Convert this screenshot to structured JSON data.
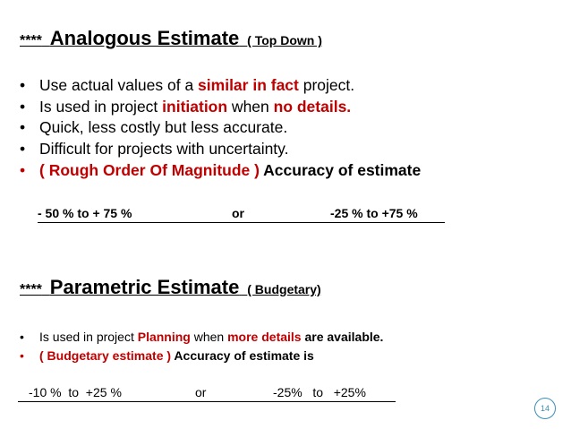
{
  "sections": [
    {
      "stars": "****",
      "title": "Analogous Estimate",
      "subtitle": "( Top Down )",
      "bullets": [
        [
          {
            "text": "Use actual values of a ",
            "color": "#000000",
            "bold": false
          },
          {
            "text": "similar in fact",
            "color": "#c00000",
            "bold": true
          },
          {
            "text": " project.",
            "color": "#000000",
            "bold": false
          }
        ],
        [
          {
            "text": "Is used in project ",
            "color": "#000000",
            "bold": false
          },
          {
            "text": "initiation",
            "color": "#c00000",
            "bold": true
          },
          {
            "text": " when ",
            "color": "#000000",
            "bold": false
          },
          {
            "text": "no details.",
            "color": "#c00000",
            "bold": true
          }
        ],
        [
          {
            "text": "Quick, less costly but less accurate.",
            "color": "#000000",
            "bold": false
          }
        ],
        [
          {
            "text": "Difficult for projects with uncertainty.",
            "color": "#000000",
            "bold": false
          }
        ],
        [
          {
            "text": "( Rough Order Of Magnitude )",
            "color": "#c00000",
            "bold": true
          },
          {
            "text": " Accuracy of estimate",
            "color": "#000000",
            "bold": true
          }
        ]
      ],
      "range": [
        "- 50 % to + 75 %",
        "or",
        "-25 % to +75 %"
      ]
    },
    {
      "stars": "****",
      "title": "Parametric Estimate",
      "subtitle": "( Budgetary)",
      "bullets": [
        [
          {
            "text": "Is used in project ",
            "color": "#000000",
            "bold": false
          },
          {
            "text": "Planning",
            "color": "#c00000",
            "bold": true
          },
          {
            "text": " when ",
            "color": "#000000",
            "bold": false
          },
          {
            "text": "more details",
            "color": "#c00000",
            "bold": true
          },
          {
            "text": " are available.",
            "color": "#000000",
            "bold": true
          }
        ],
        [
          {
            "text": "( Budgetary estimate )",
            "color": "#c00000",
            "bold": true
          },
          {
            "text": " Accuracy of estimate is",
            "color": "#000000",
            "bold": true
          }
        ]
      ],
      "range": [
        "-10 %  to  +25 %",
        "or",
        "-25%   to   +25%"
      ]
    }
  ],
  "page_number": "14"
}
